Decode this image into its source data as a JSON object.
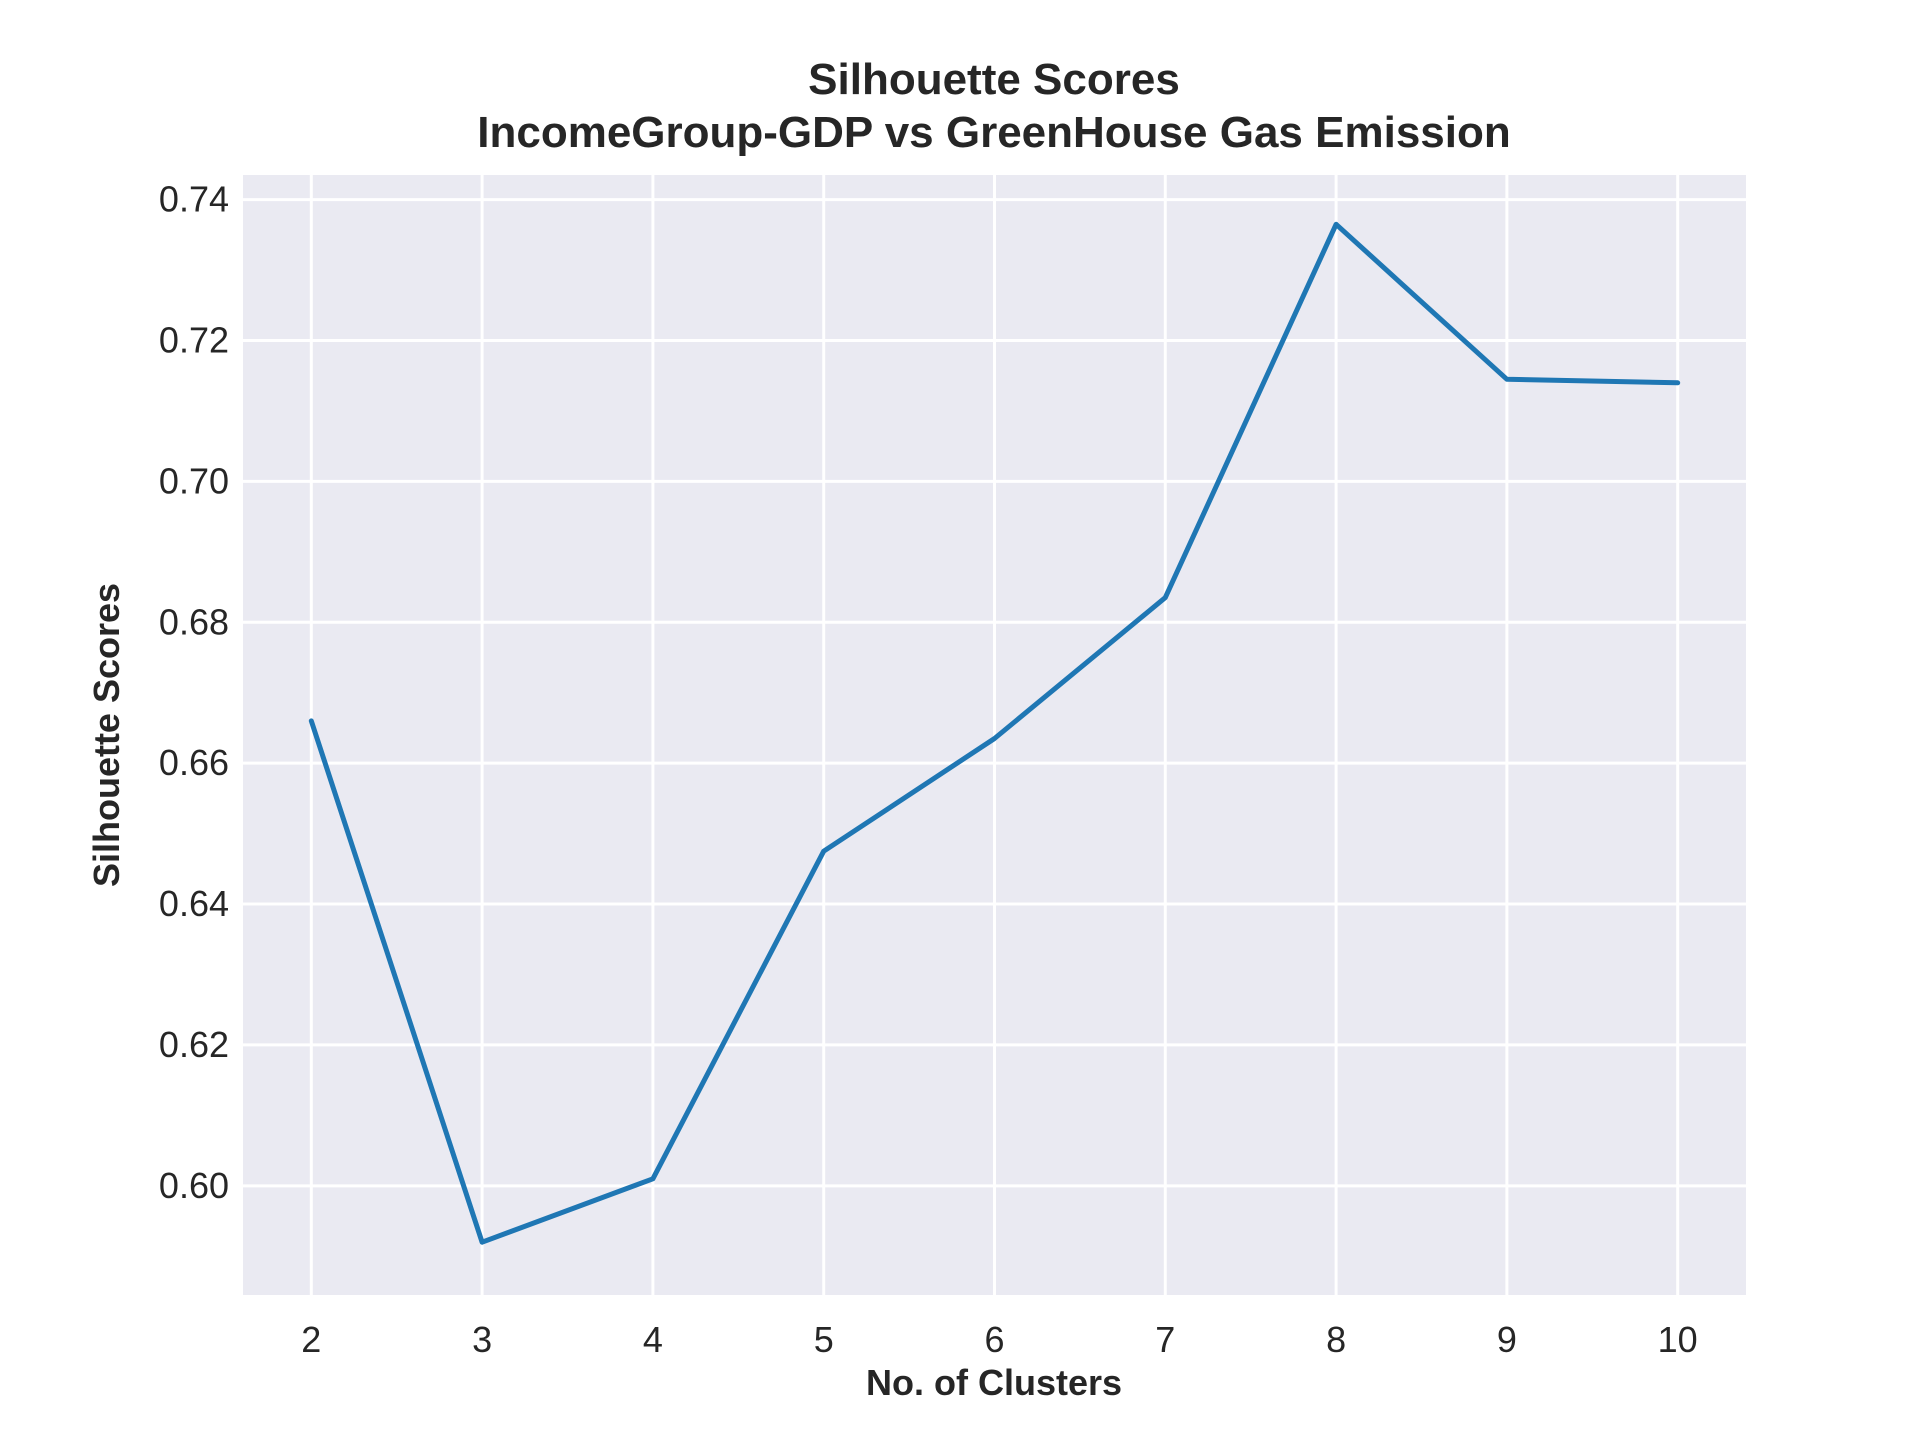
{
  "chart_data": {
    "type": "line",
    "title_line1": "Silhouette Scores",
    "title_line2": "IncomeGroup-GDP vs GreenHouse Gas Emission",
    "xlabel": "No. of Clusters",
    "ylabel": "Silhouette Scores",
    "x": [
      2,
      3,
      4,
      5,
      6,
      7,
      8,
      9,
      10
    ],
    "series": [
      {
        "values": [
          0.666,
          0.592,
          0.601,
          0.6475,
          0.6635,
          0.6835,
          0.7365,
          0.7145,
          0.714
        ]
      }
    ],
    "xticks": [
      "2",
      "3",
      "4",
      "5",
      "6",
      "7",
      "8",
      "9",
      "10"
    ],
    "yticks": [
      "0.60",
      "0.62",
      "0.64",
      "0.66",
      "0.68",
      "0.70",
      "0.72",
      "0.74"
    ],
    "ytick_values": [
      0.6,
      0.62,
      0.64,
      0.66,
      0.68,
      0.7,
      0.72,
      0.74
    ],
    "xlim": [
      1.6,
      10.4
    ],
    "ylim": [
      0.5845,
      0.7435
    ],
    "grid": true,
    "colors": {
      "plot_background": "#eaeaf2",
      "grid": "#ffffff",
      "line": "#1f77b4",
      "text": "#262626"
    }
  }
}
